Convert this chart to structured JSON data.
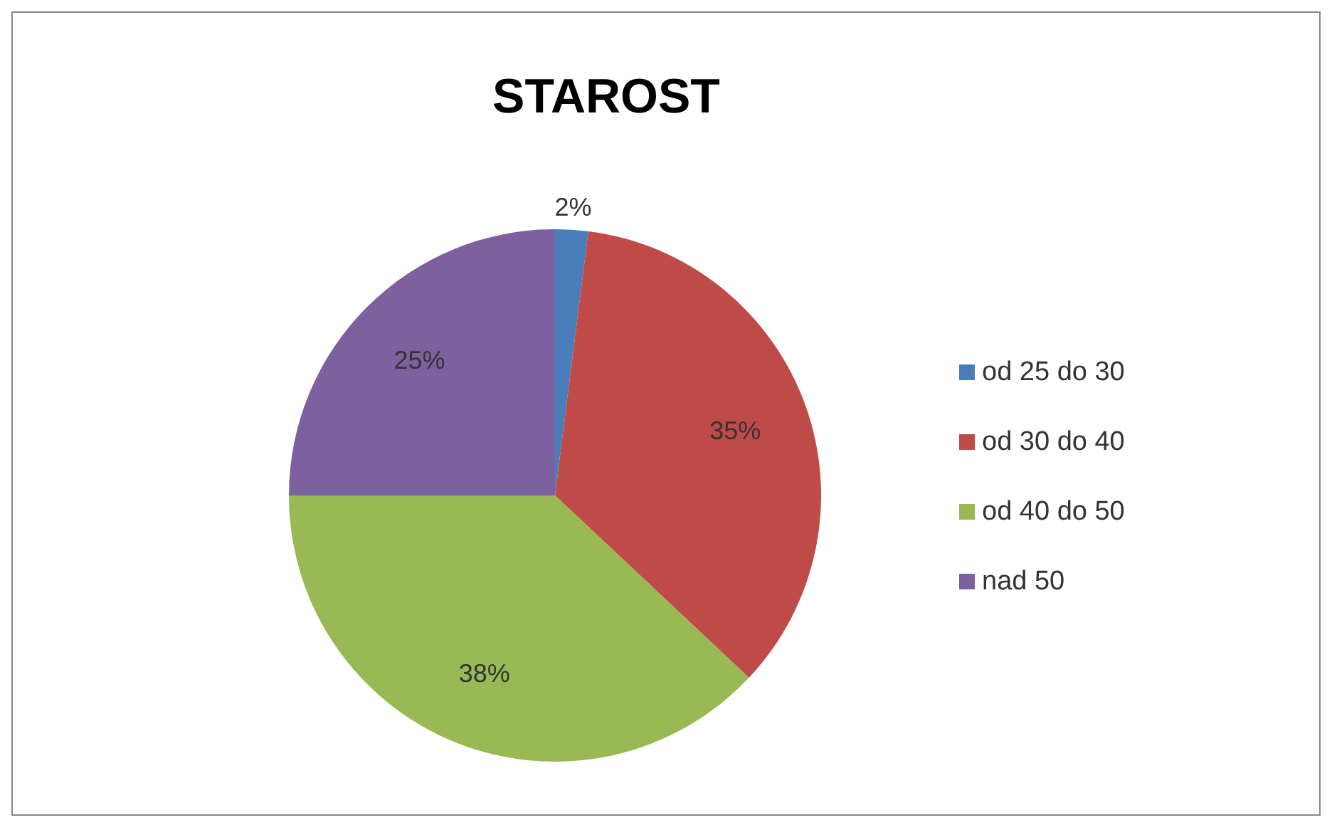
{
  "chart_data": {
    "type": "pie",
    "title": "STAROST",
    "categories": [
      "od 25 do 30",
      "od 30 do 40",
      "od 40 do 50",
      "nad 50"
    ],
    "values": [
      2,
      35,
      38,
      25
    ],
    "colors": [
      "#4a7ebb",
      "#be4b48",
      "#98b954",
      "#7d60a0"
    ],
    "value_labels": [
      "2%",
      "35%",
      "38%",
      "25%"
    ],
    "legend": "right"
  }
}
